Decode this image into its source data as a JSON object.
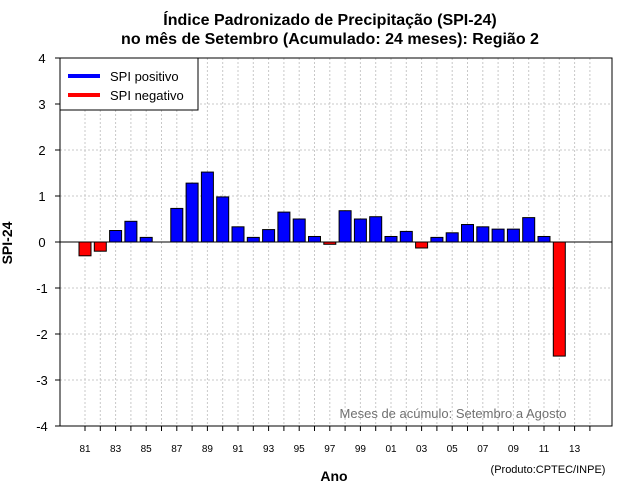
{
  "chart_data": {
    "type": "bar",
    "title": "Índice Padronizado de Precipitação (SPI-24)",
    "subtitle": "no mês de Setembro (Acumulado: 24 meses): Região 2",
    "xlabel": "Ano",
    "ylabel": "SPI-24",
    "ylim": [
      -4,
      4
    ],
    "yticks": [
      -4,
      -3,
      -2,
      -1,
      0,
      1,
      2,
      3,
      4
    ],
    "grid": true,
    "x": [
      1981,
      1982,
      1983,
      1984,
      1985,
      1986,
      1987,
      1988,
      1989,
      1990,
      1991,
      1992,
      1993,
      1994,
      1995,
      1996,
      1997,
      1998,
      1999,
      2000,
      2001,
      2002,
      2003,
      2004,
      2005,
      2006,
      2007,
      2008,
      2009,
      2010,
      2011,
      2012
    ],
    "values": [
      -0.3,
      -0.2,
      0.25,
      0.45,
      0.1,
      0.0,
      0.73,
      1.28,
      1.52,
      0.98,
      0.33,
      0.1,
      0.27,
      0.65,
      0.5,
      0.12,
      -0.05,
      0.68,
      0.5,
      0.55,
      0.12,
      0.23,
      -0.13,
      0.1,
      0.2,
      0.38,
      0.33,
      0.28,
      0.28,
      0.53,
      0.12,
      -2.48
    ],
    "xtick_labels": [
      "81",
      "83",
      "85",
      "87",
      "89",
      "91",
      "93",
      "95",
      "97",
      "99",
      "01",
      "03",
      "05",
      "07",
      "09",
      "11",
      "13"
    ],
    "legend": [
      {
        "label": "SPI positivo",
        "color": "#0000ff"
      },
      {
        "label": "SPI negativo",
        "color": "#ff0000"
      }
    ],
    "legend_position": "top-left",
    "annotation": "Meses de acúmulo: Setembro a Agosto",
    "credit": "(Produto:CPTEC/INPE)",
    "colors": {
      "positive": "#0000ff",
      "negative": "#ff0000",
      "grid": "#c8c8c8",
      "annotation": "#707070"
    }
  }
}
